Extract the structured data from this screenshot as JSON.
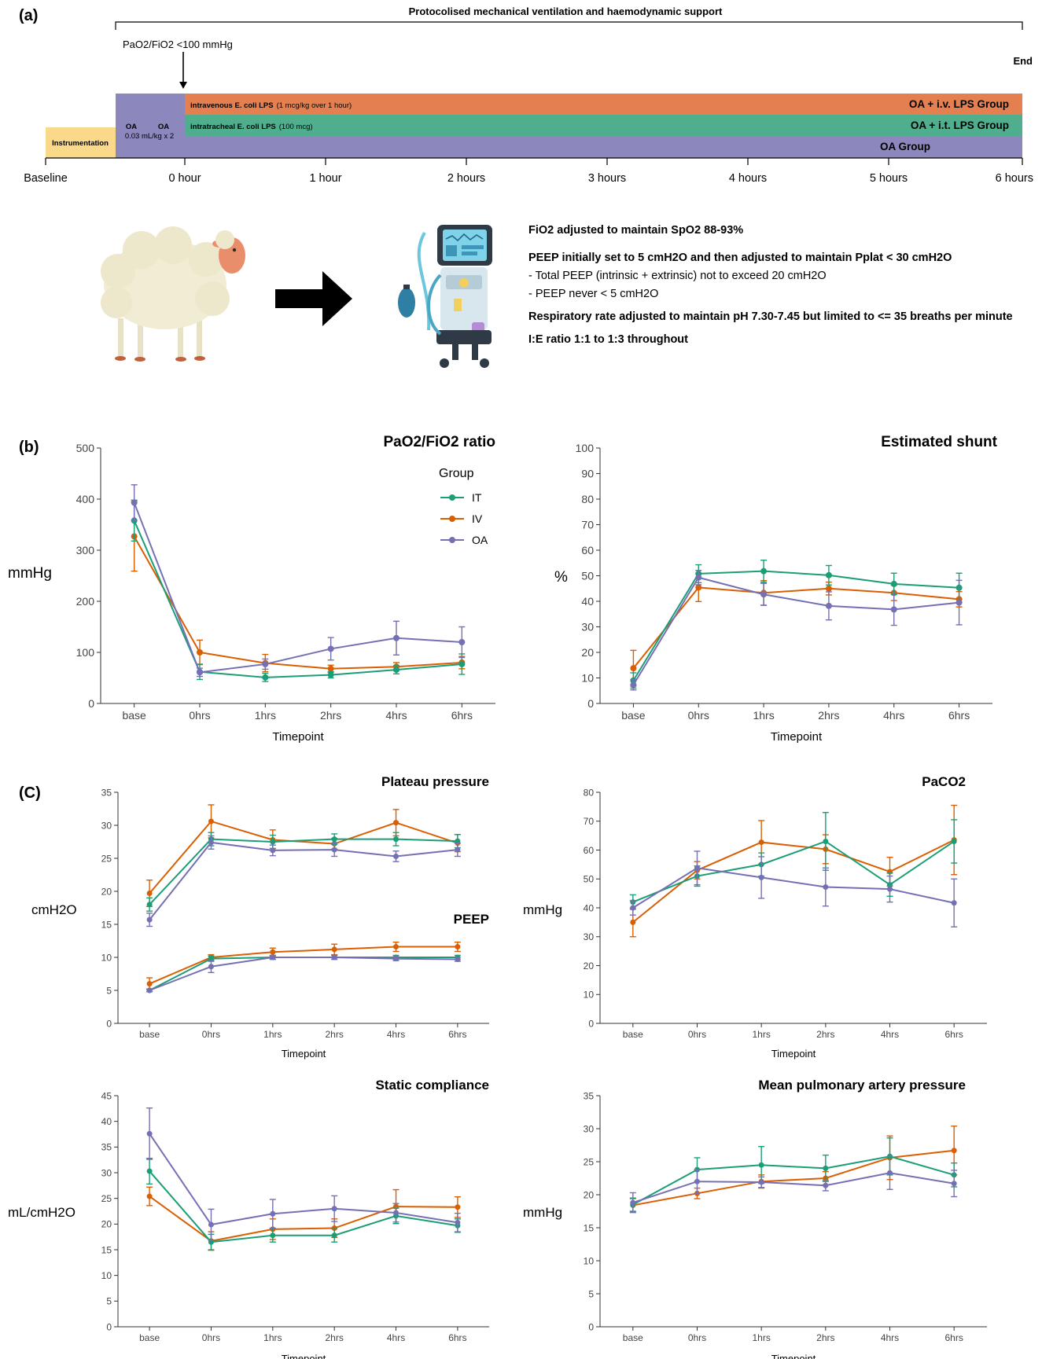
{
  "panel_labels": {
    "a": "(a)",
    "b": "(b)",
    "c": "(C)"
  },
  "timeline": {
    "top_label": "Protocolised mechanical ventilation and haemodynamic support",
    "trigger_label": "PaO2/FiO2  <100 mmHg",
    "end_label": "End",
    "instrumentation_label": "Instrumentation",
    "oa_label_1": "OA",
    "oa_label_2": "OA",
    "oa_dose_label": "0.03 mL/kg  x 2",
    "iv_bar": {
      "title": "intravenous E. coli LPS",
      "detail": "(1 mcg/kg over 1 hour)",
      "group": "OA + i.v. LPS Group"
    },
    "it_bar": {
      "title": "intratracheal E. coli LPS",
      "detail": "(100 mcg)",
      "group": "OA + i.t. LPS Group"
    },
    "oa_bar": {
      "group": "OA Group"
    },
    "ticks": [
      "Baseline",
      "0 hour",
      "1 hour",
      "2 hours",
      "3 hours",
      "4 hours",
      "5 hours",
      "6 hours"
    ],
    "colors": {
      "instrumentation": "#fbd98a",
      "oa": "#8c87bd",
      "iv": "#e4804f",
      "it": "#4fae8e"
    }
  },
  "protocol": {
    "fio2": "FiO2 adjusted to maintain SpO2 88-93%",
    "peep": "PEEP initially set to 5 cmH2O and then adjusted to maintain Pplat < 30 cmH2O",
    "peep_note_1": "- Total PEEP (intrinsic + extrinsic) not to exceed 20 cmH2O",
    "peep_note_2": "- PEEP never < 5 cmH2O",
    "rr": "Respiratory rate adjusted to maintain pH 7.30-7.45 but limited to <= 35 breaths per minute",
    "ie": "I:E ratio 1:1 to 1:3 throughout"
  },
  "icons": [
    "sheep-icon",
    "arrow-right-icon",
    "ventilator-icon"
  ],
  "series_colors": {
    "IT": "#1b9e77",
    "IV": "#d95f02",
    "OA": "#7570b3"
  },
  "chart_data": [
    {
      "id": "pf",
      "type": "line",
      "title": "PaO2/FiO2 ratio",
      "xlabel": "Timepoint",
      "ylabel": "mmHg",
      "categories": [
        "base",
        "0hrs",
        "1hrs",
        "2hrs",
        "4hrs",
        "6hrs"
      ],
      "ylim": [
        0,
        500
      ],
      "yticks": [
        0,
        100,
        200,
        300,
        400,
        500
      ],
      "legend": {
        "title": "Group",
        "entries": [
          "IT",
          "IV",
          "OA"
        ],
        "position": "top-right"
      },
      "series": [
        {
          "name": "IT",
          "values": [
            358,
            62,
            51,
            56,
            66,
            77
          ],
          "errors": [
            40,
            15,
            8,
            6,
            8,
            20
          ]
        },
        {
          "name": "IV",
          "values": [
            327,
            100,
            79,
            68,
            72,
            80
          ],
          "errors": [
            68,
            24,
            17,
            7,
            8,
            12
          ]
        },
        {
          "name": "OA",
          "values": [
            393,
            61,
            77,
            107,
            128,
            120
          ],
          "errors": [
            35,
            8,
            10,
            22,
            33,
            30
          ]
        }
      ]
    },
    {
      "id": "shunt",
      "type": "line",
      "title": "Estimated shunt",
      "xlabel": "Timepoint",
      "ylabel": "%",
      "categories": [
        "base",
        "0hrs",
        "1hrs",
        "2hrs",
        "4hrs",
        "6hrs"
      ],
      "ylim": [
        0,
        100
      ],
      "yticks": [
        0,
        10,
        20,
        30,
        40,
        50,
        60,
        70,
        80,
        90,
        100
      ],
      "series": [
        {
          "name": "IT",
          "values": [
            9,
            50.8,
            51.8,
            50.2,
            46.8,
            45.3
          ],
          "errors": [
            3,
            3.5,
            4.3,
            3.8,
            4.2,
            5.7
          ]
        },
        {
          "name": "IV",
          "values": [
            13.8,
            45.4,
            43.3,
            45.0,
            43.3,
            40.8
          ],
          "errors": [
            7,
            5.5,
            4.8,
            2.5,
            3.0,
            3.0
          ]
        },
        {
          "name": "OA",
          "values": [
            7.3,
            49.3,
            42.7,
            38.2,
            36.8,
            39.5
          ],
          "errors": [
            2,
            2.8,
            4.3,
            5.5,
            6.2,
            8.7
          ]
        }
      ]
    },
    {
      "id": "pressure",
      "type": "line",
      "title": "Plateau pressure",
      "subtitle": "PEEP",
      "xlabel": "Timepoint",
      "ylabel": "cmH2O",
      "categories": [
        "base",
        "0hrs",
        "1hrs",
        "2hrs",
        "4hrs",
        "6hrs"
      ],
      "ylim": [
        0,
        35
      ],
      "yticks": [
        0,
        5,
        10,
        15,
        20,
        25,
        30,
        35
      ],
      "series": [
        {
          "name": "IT",
          "values": [
            18.0,
            27.9,
            27.5,
            27.9,
            27.9,
            27.6
          ],
          "errors": [
            1.0,
            1.0,
            1.0,
            0.8,
            1.0,
            1.0
          ]
        },
        {
          "name": "IV",
          "values": [
            19.7,
            30.6,
            27.8,
            27.2,
            30.4,
            27.3
          ],
          "errors": [
            2.0,
            2.5,
            1.5,
            0.8,
            2.0,
            1.3
          ]
        },
        {
          "name": "OA",
          "values": [
            15.7,
            27.4,
            26.2,
            26.3,
            25.3,
            26.3
          ],
          "errors": [
            1.0,
            1.0,
            0.8,
            1.0,
            0.8,
            1.0
          ]
        },
        {
          "name": "IT",
          "values": [
            5.0,
            9.8,
            10.0,
            10.0,
            10.0,
            10.0
          ],
          "errors": [
            0.2,
            0.4,
            0.3,
            0.3,
            0.3,
            0.3
          ]
        },
        {
          "name": "IV",
          "values": [
            6.0,
            10.0,
            10.8,
            11.2,
            11.6,
            11.6
          ],
          "errors": [
            0.9,
            0.4,
            0.6,
            0.8,
            0.7,
            0.7
          ]
        },
        {
          "name": "OA",
          "values": [
            5.0,
            8.6,
            10.0,
            10.0,
            9.8,
            9.7
          ],
          "errors": [
            0.2,
            0.9,
            0.3,
            0.3,
            0.3,
            0.3
          ]
        }
      ]
    },
    {
      "id": "paco2",
      "type": "line",
      "title": "PaCO2",
      "xlabel": "Timepoint",
      "ylabel": "mmHg",
      "categories": [
        "base",
        "0hrs",
        "1hrs",
        "2hrs",
        "4hrs",
        "6hrs"
      ],
      "ylim": [
        0,
        80
      ],
      "yticks": [
        0,
        10,
        20,
        30,
        40,
        50,
        60,
        70,
        80
      ],
      "series": [
        {
          "name": "IT",
          "values": [
            42,
            51,
            55,
            63,
            48,
            63
          ],
          "errors": [
            2.5,
            3.5,
            4,
            10,
            4,
            7.5
          ]
        },
        {
          "name": "IV",
          "values": [
            35,
            53,
            62.7,
            60.3,
            52.5,
            63.5
          ],
          "errors": [
            5,
            3,
            7.5,
            5,
            5,
            12
          ]
        },
        {
          "name": "OA",
          "values": [
            40,
            53.8,
            50.5,
            47.2,
            46.5,
            41.7
          ],
          "errors": [
            2.5,
            5.8,
            7.2,
            6.6,
            4.5,
            8.3
          ]
        }
      ]
    },
    {
      "id": "compliance",
      "type": "line",
      "title": "Static compliance",
      "xlabel": "Timepoint",
      "ylabel": "mL/cmH2O",
      "categories": [
        "base",
        "0hrs",
        "1hrs",
        "2hrs",
        "4hrs",
        "6hrs"
      ],
      "ylim": [
        0,
        45
      ],
      "yticks": [
        0,
        5,
        10,
        15,
        20,
        25,
        30,
        35,
        40,
        45
      ],
      "series": [
        {
          "name": "IT",
          "values": [
            30.3,
            16.5,
            17.8,
            17.8,
            21.6,
            19.7
          ],
          "errors": [
            2.5,
            1.5,
            1.3,
            1.3,
            1.5,
            1.3
          ]
        },
        {
          "name": "IV",
          "values": [
            25.4,
            16.7,
            19.0,
            19.2,
            23.4,
            23.3
          ],
          "errors": [
            1.8,
            1.8,
            2.0,
            1.8,
            3.3,
            2.0
          ]
        },
        {
          "name": "OA",
          "values": [
            37.6,
            19.9,
            22.0,
            23.0,
            22.2,
            20.3
          ],
          "errors": [
            5.0,
            3.0,
            2.8,
            2.5,
            1.8,
            1.8
          ]
        }
      ]
    },
    {
      "id": "mpap",
      "type": "line",
      "title": "Mean pulmonary artery pressure",
      "xlabel": "Timepoint",
      "ylabel": "mmHg",
      "categories": [
        "base",
        "0hrs",
        "1hrs",
        "2hrs",
        "4hrs",
        "6hrs"
      ],
      "ylim": [
        0,
        35
      ],
      "yticks": [
        0,
        5,
        10,
        15,
        20,
        25,
        30,
        35
      ],
      "series": [
        {
          "name": "IT",
          "values": [
            18.5,
            23.8,
            24.5,
            24.0,
            25.8,
            23.0
          ],
          "errors": [
            1.0,
            1.8,
            2.8,
            2.0,
            2.8,
            1.8
          ]
        },
        {
          "name": "IV",
          "values": [
            18.4,
            20.2,
            22.0,
            22.5,
            25.6,
            26.7
          ],
          "errors": [
            1.0,
            0.8,
            1.0,
            1.0,
            3.3,
            3.7
          ]
        },
        {
          "name": "OA",
          "values": [
            18.8,
            22.0,
            21.9,
            21.4,
            23.3,
            21.7
          ],
          "errors": [
            1.5,
            1.8,
            0.8,
            0.8,
            2.5,
            2.0
          ]
        }
      ]
    }
  ]
}
